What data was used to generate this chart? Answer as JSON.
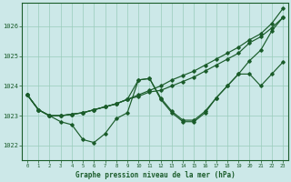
{
  "background_color": "#cce8e8",
  "grid_color": "#99ccbb",
  "line_color": "#1a5c2a",
  "xlabel": "Graphe pression niveau de la mer (hPa)",
  "xlim": [
    -0.5,
    23.5
  ],
  "ylim": [
    1021.5,
    1026.8
  ],
  "yticks": [
    1022,
    1023,
    1024,
    1025,
    1026
  ],
  "xticks": [
    0,
    1,
    2,
    3,
    4,
    5,
    6,
    7,
    8,
    9,
    10,
    11,
    12,
    13,
    14,
    15,
    16,
    17,
    18,
    19,
    20,
    21,
    22,
    23
  ],
  "series": [
    {
      "x": [
        0,
        1,
        2,
        3,
        4,
        5,
        6,
        7,
        8,
        9,
        10,
        11,
        12,
        13,
        14,
        15,
        16,
        17,
        18,
        19,
        20,
        21,
        22,
        23
      ],
      "y": [
        1023.7,
        1023.2,
        1023.0,
        1023.0,
        1023.05,
        1023.1,
        1023.2,
        1023.3,
        1023.4,
        1023.55,
        1023.7,
        1023.85,
        1024.0,
        1024.2,
        1024.35,
        1024.5,
        1024.7,
        1024.9,
        1025.1,
        1025.3,
        1025.55,
        1025.75,
        1026.1,
        1026.6
      ]
    },
    {
      "x": [
        0,
        1,
        2,
        3,
        4,
        5,
        6,
        7,
        8,
        9,
        10,
        11,
        12,
        13,
        14,
        15,
        16,
        17,
        18,
        19,
        20,
        21,
        22,
        23
      ],
      "y": [
        1023.7,
        1023.2,
        1023.0,
        1023.0,
        1023.05,
        1023.1,
        1023.2,
        1023.3,
        1023.4,
        1023.55,
        1023.65,
        1023.8,
        1023.85,
        1024.0,
        1024.15,
        1024.3,
        1024.5,
        1024.7,
        1024.9,
        1025.1,
        1025.45,
        1025.65,
        1025.95,
        1026.3
      ]
    },
    {
      "x": [
        0,
        1,
        2,
        3,
        4,
        5,
        6,
        7,
        8,
        9,
        10,
        11,
        12,
        13,
        14,
        15,
        16,
        17,
        18,
        19,
        20,
        21,
        22,
        23
      ],
      "y": [
        1023.7,
        1023.2,
        1023.0,
        1023.0,
        1023.05,
        1023.1,
        1023.2,
        1023.3,
        1023.4,
        1023.55,
        1024.2,
        1024.25,
        1023.6,
        1023.15,
        1022.85,
        1022.85,
        1023.15,
        1023.6,
        1024.0,
        1024.4,
        1024.85,
        1025.2,
        1025.85,
        1026.3
      ]
    },
    {
      "x": [
        0,
        1,
        2,
        3,
        4,
        5,
        6,
        7,
        8,
        9,
        10,
        11,
        12,
        13,
        14,
        15,
        16,
        17,
        18,
        19,
        20,
        21,
        22,
        23
      ],
      "y": [
        1023.7,
        1023.2,
        1023.0,
        1022.8,
        1022.7,
        1022.2,
        1022.1,
        1022.4,
        1022.9,
        1023.1,
        1024.2,
        1024.25,
        1023.55,
        1023.1,
        1022.8,
        1022.8,
        1023.1,
        1023.6,
        1024.0,
        1024.4,
        1024.4,
        1024.0,
        1024.4,
        1024.8
      ]
    }
  ]
}
